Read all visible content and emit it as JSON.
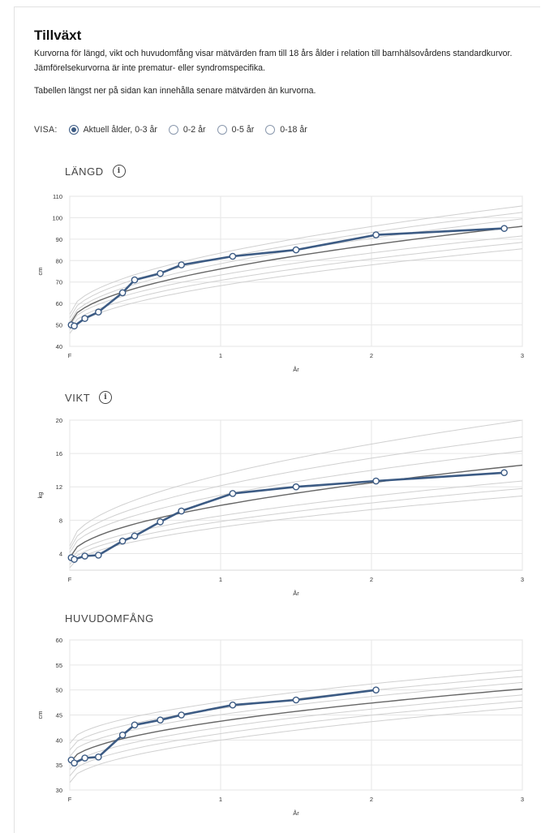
{
  "page": {
    "title": "Tillväxt",
    "description": "Kurvorna för längd, vikt och huvudomfång visar mätvärden fram till 18 års ålder i relation till barnhälsovårdens standardkurvor. Jämförelsekurvorna är inte prematur- eller syndromspecifika.",
    "note": "Tabellen längst ner på sidan kan innehålla senare mätvärden än kurvorna."
  },
  "visa": {
    "label": "VISA:",
    "options": [
      {
        "label": "Aktuell ålder, 0-3 år",
        "checked": true
      },
      {
        "label": "0-2 år",
        "checked": false
      },
      {
        "label": "0-5 år",
        "checked": false
      },
      {
        "label": "0-18 år",
        "checked": false
      }
    ]
  },
  "colors": {
    "series": "#3c5b84",
    "median": "#666666",
    "reference": "#d0d0d0",
    "grid": "#e6e6e6"
  },
  "chart_data": [
    {
      "type": "line",
      "title": "LÄNGD",
      "has_info_icon": true,
      "xlabel": "År",
      "ylabel": "cm",
      "xlim": [
        0,
        3
      ],
      "ylim": [
        40,
        110
      ],
      "xticks": [
        {
          "v": 0,
          "label": "F"
        },
        {
          "v": 1,
          "label": "1"
        },
        {
          "v": 2,
          "label": "2"
        },
        {
          "v": 3,
          "label": "3"
        }
      ],
      "yticks": [
        40,
        50,
        60,
        70,
        80,
        90,
        100,
        110
      ],
      "grid": true,
      "reference_curves_at_0": [
        46,
        47.8,
        49.6,
        51.4,
        53.2,
        55
      ],
      "reference_curves_at_3": [
        85.5,
        88.5,
        91.5,
        99.5,
        102.5,
        105.5
      ],
      "median_curve": {
        "at_0": 50.3,
        "at_3": 96
      },
      "series": [
        {
          "x": [
            0.01,
            0.03,
            0.1,
            0.19,
            0.35,
            0.43,
            0.6,
            0.74,
            1.08,
            1.5,
            2.03,
            2.88
          ],
          "y": [
            50,
            49.5,
            53,
            56,
            65,
            71,
            74,
            78,
            82,
            85,
            92,
            95
          ]
        }
      ]
    },
    {
      "type": "line",
      "title": "VIKT",
      "has_info_icon": true,
      "xlabel": "År",
      "ylabel": "kg",
      "xlim": [
        0,
        3
      ],
      "ylim": [
        2,
        20
      ],
      "xticks": [
        {
          "v": 0,
          "label": "F"
        },
        {
          "v": 1,
          "label": "1"
        },
        {
          "v": 2,
          "label": "2"
        },
        {
          "v": 3,
          "label": "3"
        }
      ],
      "yticks": [
        {
          "v": 4,
          "label": "4"
        },
        {
          "v": 8,
          "label": "8"
        },
        {
          "v": 12,
          "label": "12"
        },
        {
          "v": 16,
          "label": "16"
        },
        {
          "v": 20,
          "label": "20"
        }
      ],
      "grid": true,
      "reference_curves_at_0": [
        2.3,
        2.7,
        3.1,
        4.1,
        4.5,
        4.9
      ],
      "reference_curves_at_3": [
        10.9,
        11.8,
        12.7,
        16.3,
        18,
        20
      ],
      "median_curve": {
        "at_0": 3.5,
        "at_3": 14.6
      },
      "series": [
        {
          "x": [
            0.01,
            0.03,
            0.1,
            0.19,
            0.35,
            0.43,
            0.6,
            0.74,
            1.08,
            1.5,
            2.03,
            2.88
          ],
          "y": [
            3.5,
            3.3,
            3.7,
            3.8,
            5.5,
            6.1,
            7.8,
            9.1,
            11.2,
            12,
            12.7,
            13.7
          ]
        }
      ]
    },
    {
      "type": "line",
      "title": "HUVUDOMFÅNG",
      "has_info_icon": false,
      "xlabel": "År",
      "ylabel": "cm",
      "xlim": [
        0,
        3
      ],
      "ylim": [
        30,
        60
      ],
      "xticks": [
        {
          "v": 0,
          "label": "F"
        },
        {
          "v": 1,
          "label": "1"
        },
        {
          "v": 2,
          "label": "2"
        },
        {
          "v": 3,
          "label": "3"
        }
      ],
      "yticks": [
        30,
        35,
        40,
        45,
        50,
        55,
        60
      ],
      "grid": true,
      "reference_curves_at_0": [
        31.5,
        32.8,
        34.1,
        36.7,
        38,
        39.3
      ],
      "reference_curves_at_3": [
        46.5,
        47.8,
        49,
        51.5,
        52.7,
        54
      ],
      "median_curve": {
        "at_0": 35.4,
        "at_3": 50.2
      },
      "series": [
        {
          "x": [
            0.01,
            0.03,
            0.1,
            0.19,
            0.35,
            0.43,
            0.6,
            0.74,
            1.08,
            1.5,
            2.03
          ],
          "y": [
            36,
            35.4,
            36.4,
            36.6,
            41,
            43,
            44,
            45,
            47,
            48,
            50
          ]
        }
      ]
    }
  ]
}
